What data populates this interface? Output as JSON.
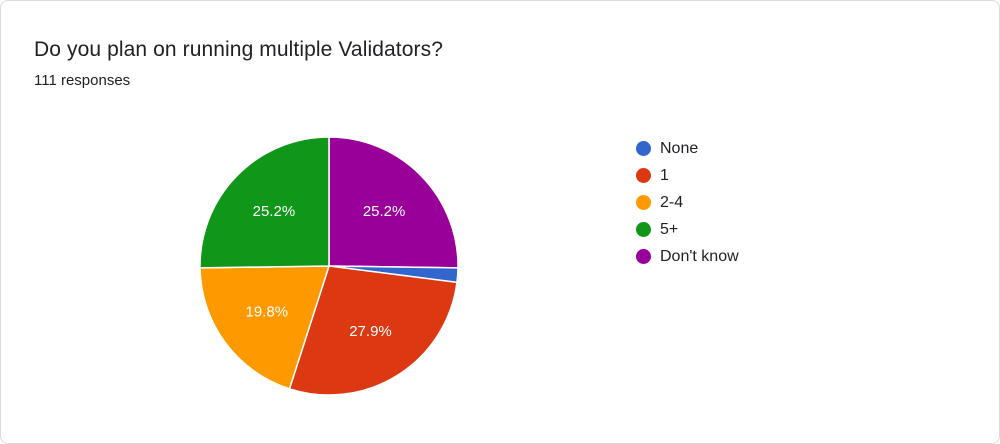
{
  "header": {
    "title": "Do you plan on running multiple Validators?",
    "responses": "111 responses"
  },
  "chart_data": {
    "type": "pie",
    "categories": [
      "None",
      "1",
      "2-4",
      "5+",
      "Don't know"
    ],
    "values": [
      1.8,
      27.9,
      19.8,
      25.2,
      25.2
    ],
    "data_labels": [
      "",
      "27.9%",
      "19.8%",
      "25.2%",
      "25.2%"
    ],
    "colors": [
      "#3366cc",
      "#dc3912",
      "#ff9900",
      "#109618",
      "#990099"
    ],
    "legend_position": "right",
    "start": "12 o'clock, clockwise, starting with Don't know"
  }
}
